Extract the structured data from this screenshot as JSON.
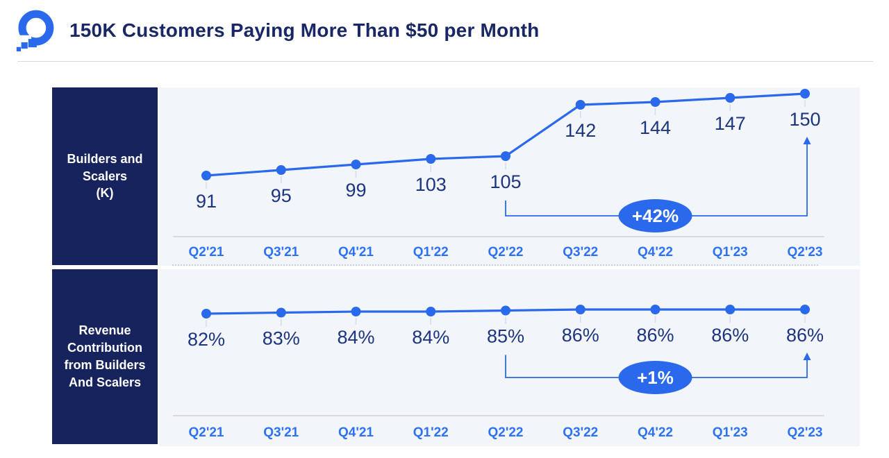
{
  "header": {
    "title": "150K Customers Paying More Than $50 per Month",
    "logo": "digitalocean-logo"
  },
  "colors": {
    "accent_blue": "#2A69EC",
    "axis_label_blue": "#2D72F4",
    "title_navy": "#1A2766",
    "sidebar_navy": "#16235C",
    "data_label_navy": "#1D3480",
    "chart_background": "#F2F5FA",
    "axis_line_gray": "#D2D2D2",
    "annotation_text": "#FFFFFF"
  },
  "chart_data": [
    {
      "type": "line",
      "title": "Builders and Scalers (K)",
      "row_label": "Builders and\nScalers\n(K)",
      "categories": [
        "Q2'21",
        "Q3'21",
        "Q4'21",
        "Q1'22",
        "Q2'22",
        "Q3'22",
        "Q4'22",
        "Q1'23",
        "Q2'23"
      ],
      "values": [
        91,
        95,
        99,
        103,
        105,
        142,
        144,
        147,
        150
      ],
      "value_labels": [
        "91",
        "95",
        "99",
        "103",
        "105",
        "142",
        "144",
        "147",
        "150"
      ],
      "annotation": {
        "label": "+42%",
        "from_category": "Q2'22",
        "to_category": "Q2'23"
      },
      "ylim": [
        85,
        155
      ],
      "grid": false,
      "legend": false
    },
    {
      "type": "line",
      "title": "Revenue Contribution from Builders And Scalers",
      "row_label": "Revenue\nContribution\nfrom Builders\nAnd Scalers",
      "categories": [
        "Q2'21",
        "Q3'21",
        "Q4'21",
        "Q1'22",
        "Q2'22",
        "Q3'22",
        "Q4'22",
        "Q1'23",
        "Q2'23"
      ],
      "values": [
        82,
        83,
        84,
        84,
        85,
        86,
        86,
        86,
        86
      ],
      "value_labels": [
        "82%",
        "83%",
        "84%",
        "84%",
        "85%",
        "86%",
        "86%",
        "86%",
        "86%"
      ],
      "annotation": {
        "label": "+1%",
        "from_category": "Q2'22",
        "to_category": "Q2'23"
      },
      "ylim": [
        80,
        90
      ],
      "grid": false,
      "legend": false
    }
  ]
}
